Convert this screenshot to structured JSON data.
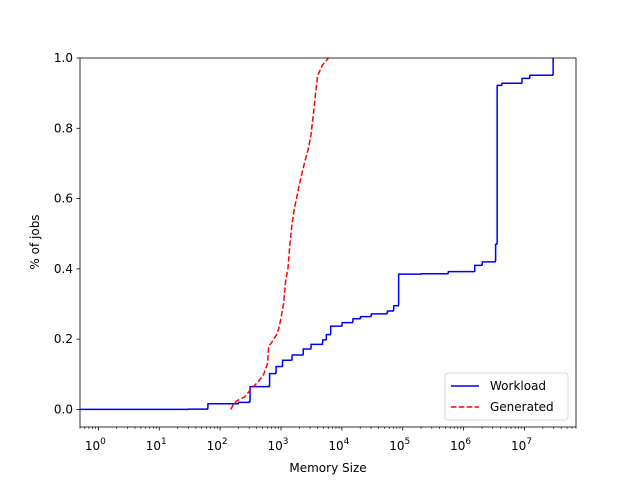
{
  "chart_data": {
    "type": "line",
    "xlabel": "Memory Size",
    "ylabel": "% of jobs",
    "xscale": "log",
    "xlim": [
      0.5,
      70000000
    ],
    "ylim": [
      -0.05,
      1.0
    ],
    "x_ticks": [
      {
        "value": 1,
        "base": "10",
        "exp": "0"
      },
      {
        "value": 10,
        "base": "10",
        "exp": "1"
      },
      {
        "value": 100,
        "base": "10",
        "exp": "2"
      },
      {
        "value": 1000,
        "base": "10",
        "exp": "3"
      },
      {
        "value": 10000,
        "base": "10",
        "exp": "4"
      },
      {
        "value": 100000,
        "base": "10",
        "exp": "5"
      },
      {
        "value": 1000000,
        "base": "10",
        "exp": "6"
      },
      {
        "value": 10000000,
        "base": "10",
        "exp": "7"
      }
    ],
    "y_ticks": [
      {
        "value": 0.0,
        "label": "0.0"
      },
      {
        "value": 0.2,
        "label": "0.2"
      },
      {
        "value": 0.4,
        "label": "0.4"
      },
      {
        "value": 0.6,
        "label": "0.6"
      },
      {
        "value": 0.8,
        "label": "0.8"
      },
      {
        "value": 1.0,
        "label": "1.0"
      }
    ],
    "legend_position": "lower-right",
    "grid": false,
    "series": [
      {
        "name": "Workload",
        "color": "#0000ff",
        "style": "solid",
        "step": true,
        "points": [
          [
            0.5,
            0.0
          ],
          [
            30,
            0.001
          ],
          [
            62,
            0.003
          ],
          [
            63,
            0.016
          ],
          [
            200,
            0.02
          ],
          [
            300,
            0.022
          ],
          [
            310,
            0.065
          ],
          [
            640,
            0.068
          ],
          [
            650,
            0.102
          ],
          [
            820,
            0.105
          ],
          [
            830,
            0.122
          ],
          [
            1050,
            0.124
          ],
          [
            1060,
            0.14
          ],
          [
            1500,
            0.143
          ],
          [
            1520,
            0.155
          ],
          [
            2300,
            0.158
          ],
          [
            2320,
            0.172
          ],
          [
            3100,
            0.175
          ],
          [
            3120,
            0.185
          ],
          [
            4800,
            0.19
          ],
          [
            4850,
            0.198
          ],
          [
            5500,
            0.2
          ],
          [
            5550,
            0.213
          ],
          [
            6500,
            0.216
          ],
          [
            6550,
            0.237
          ],
          [
            10000,
            0.24
          ],
          [
            10100,
            0.247
          ],
          [
            15000,
            0.25
          ],
          [
            15200,
            0.258
          ],
          [
            20000,
            0.261
          ],
          [
            20300,
            0.264
          ],
          [
            30000,
            0.267
          ],
          [
            30500,
            0.272
          ],
          [
            55000,
            0.275
          ],
          [
            56000,
            0.28
          ],
          [
            70000,
            0.283
          ],
          [
            71000,
            0.295
          ],
          [
            85000,
            0.298
          ],
          [
            85500,
            0.385
          ],
          [
            200000,
            0.386
          ],
          [
            550000,
            0.388
          ],
          [
            560000,
            0.392
          ],
          [
            1500000,
            0.393
          ],
          [
            1520000,
            0.41
          ],
          [
            2000000,
            0.412
          ],
          [
            2020000,
            0.42
          ],
          [
            3300000,
            0.423
          ],
          [
            3350000,
            0.47
          ],
          [
            3500000,
            0.472
          ],
          [
            3550000,
            0.922
          ],
          [
            4200000,
            0.924
          ],
          [
            4250000,
            0.928
          ],
          [
            9000000,
            0.931
          ],
          [
            9100000,
            0.942
          ],
          [
            12000000,
            0.944
          ],
          [
            12200000,
            0.951
          ],
          [
            29000000,
            0.953
          ],
          [
            29500000,
            1.0
          ]
        ]
      },
      {
        "name": "Generated",
        "color": "#ff0000",
        "style": "dashed",
        "step": false,
        "points": [
          [
            150,
            0.0
          ],
          [
            160,
            0.01
          ],
          [
            190,
            0.025
          ],
          [
            250,
            0.035
          ],
          [
            330,
            0.06
          ],
          [
            430,
            0.08
          ],
          [
            520,
            0.1
          ],
          [
            600,
            0.13
          ],
          [
            630,
            0.18
          ],
          [
            700,
            0.19
          ],
          [
            830,
            0.21
          ],
          [
            920,
            0.23
          ],
          [
            1000,
            0.26
          ],
          [
            1100,
            0.3
          ],
          [
            1200,
            0.37
          ],
          [
            1300,
            0.4
          ],
          [
            1400,
            0.47
          ],
          [
            1500,
            0.52
          ],
          [
            1650,
            0.57
          ],
          [
            1800,
            0.6
          ],
          [
            2000,
            0.64
          ],
          [
            2200,
            0.67
          ],
          [
            2500,
            0.71
          ],
          [
            2800,
            0.74
          ],
          [
            3100,
            0.78
          ],
          [
            3400,
            0.84
          ],
          [
            3700,
            0.9
          ],
          [
            4000,
            0.95
          ],
          [
            4800,
            0.98
          ],
          [
            6000,
            1.0
          ]
        ]
      }
    ]
  }
}
